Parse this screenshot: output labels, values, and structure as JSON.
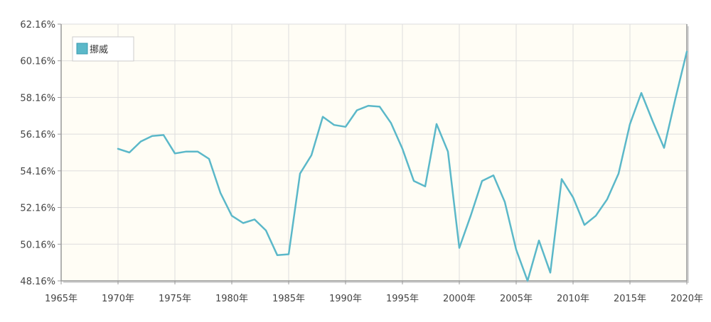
{
  "chart_data": {
    "type": "line",
    "series": [
      {
        "name": "挪威",
        "color": "#5bb8c9",
        "x": [
          1970,
          1971,
          1972,
          1973,
          1974,
          1975,
          1976,
          1977,
          1978,
          1979,
          1980,
          1981,
          1982,
          1983,
          1984,
          1985,
          1986,
          1987,
          1988,
          1989,
          1990,
          1991,
          1992,
          1993,
          1994,
          1995,
          1996,
          1997,
          1998,
          1999,
          2000,
          2001,
          2002,
          2003,
          2004,
          2005,
          2006,
          2007,
          2008,
          2009,
          2010,
          2011,
          2012,
          2013,
          2014,
          2015,
          2016,
          2017,
          2018,
          2019,
          2020
        ],
        "values": [
          55.36,
          55.16,
          55.76,
          56.06,
          56.11,
          55.11,
          55.21,
          55.21,
          54.81,
          52.96,
          51.71,
          51.31,
          51.51,
          50.91,
          49.56,
          49.61,
          54.01,
          55.01,
          57.11,
          56.66,
          56.56,
          57.46,
          57.71,
          57.66,
          56.76,
          55.36,
          53.61,
          53.31,
          56.71,
          55.21,
          49.96,
          51.71,
          53.61,
          53.91,
          52.46,
          49.86,
          48.16,
          50.36,
          48.61,
          53.71,
          52.71,
          51.21,
          51.71,
          52.61,
          54.01,
          56.71,
          58.41,
          56.86,
          55.41,
          58.11,
          60.66
        ]
      }
    ],
    "ylim": [
      48.16,
      62.16
    ],
    "xlim": [
      1965,
      2020
    ],
    "y_ticks": [
      "48.16%",
      "50.16%",
      "52.16%",
      "54.16%",
      "56.16%",
      "58.16%",
      "60.16%",
      "62.16%"
    ],
    "y_tick_values": [
      48.16,
      50.16,
      52.16,
      54.16,
      56.16,
      58.16,
      60.16,
      62.16
    ],
    "x_ticks": [
      "1965年",
      "1970年",
      "1975年",
      "1980年",
      "1985年",
      "1990年",
      "1995年",
      "2000年",
      "2005年",
      "2010年",
      "2015年",
      "2020年"
    ],
    "x_tick_values": [
      1965,
      1970,
      1975,
      1980,
      1985,
      1990,
      1995,
      2000,
      2005,
      2010,
      2015,
      2020
    ],
    "grid": true,
    "legend": "top-left",
    "plot_background": "#fffdf5",
    "grid_color": "#dddddd",
    "axis_color": "#999999"
  }
}
